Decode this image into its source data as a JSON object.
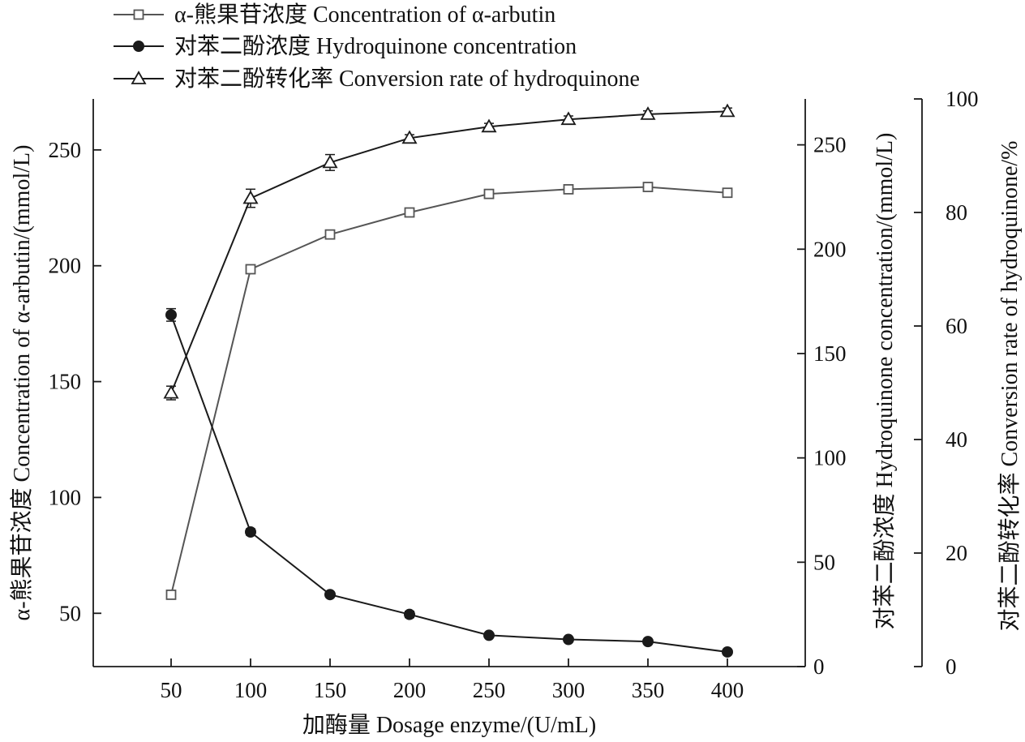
{
  "chart_data": {
    "type": "line",
    "title": "",
    "x": [
      50,
      100,
      150,
      200,
      250,
      300,
      350,
      400
    ],
    "xlabel": "加酶量 Dosage enzyme/(U/mL)",
    "x_ticks": [
      "50",
      "100",
      "150",
      "200",
      "250",
      "300",
      "350",
      "400"
    ],
    "y_left": {
      "label": "α-熊果苷浓度 Concentration of α-arbutin/(mmol/L)",
      "ylim": [
        27,
        272
      ],
      "ticks": [
        50,
        100,
        150,
        200,
        250
      ]
    },
    "y_right1": {
      "label": "对苯二酚浓度 Hydroquinone concentration/(mmol/L)",
      "ylim": [
        0,
        272
      ],
      "ticks": [
        0,
        50,
        100,
        150,
        200,
        250
      ]
    },
    "y_right2": {
      "label": "对苯二酚转化率 Conversion rate of hydroquinone/%",
      "ylim": [
        0,
        100
      ],
      "ticks": [
        0,
        20,
        40,
        60,
        80,
        100
      ]
    },
    "legend_position": "top-left",
    "grid": false,
    "series": [
      {
        "name": "α-熊果苷浓度 Concentration of α-arbutin",
        "axis": "left",
        "marker": "square-open",
        "color": "#555555",
        "values": [
          58,
          198.5,
          213.5,
          223,
          231,
          233,
          234,
          231.5
        ],
        "errors": [
          1.5,
          1.5,
          1.5,
          1.5,
          1.5,
          1.5,
          1.5,
          1.5
        ]
      },
      {
        "name": "对苯二酚浓度 Hydroquinone concentration",
        "axis": "right1",
        "marker": "circle-filled",
        "color": "#1a1a1a",
        "values": [
          168.5,
          64.5,
          34.5,
          25,
          15,
          13,
          12,
          7
        ],
        "errors": [
          3,
          1.5,
          1,
          1.5,
          1,
          1,
          1,
          1
        ]
      },
      {
        "name": "对苯二酚转化率 Conversion rate of hydroquinone",
        "axis": "right2",
        "marker": "triangle-open",
        "color": "#1a1a1a",
        "values": [
          48.2,
          82.5,
          88.8,
          93.1,
          95.1,
          96.4,
          97.3,
          97.8
        ],
        "errors": [
          1.2,
          1.6,
          1.4,
          0.6,
          0.6,
          0.6,
          0.6,
          0.6
        ]
      }
    ]
  }
}
